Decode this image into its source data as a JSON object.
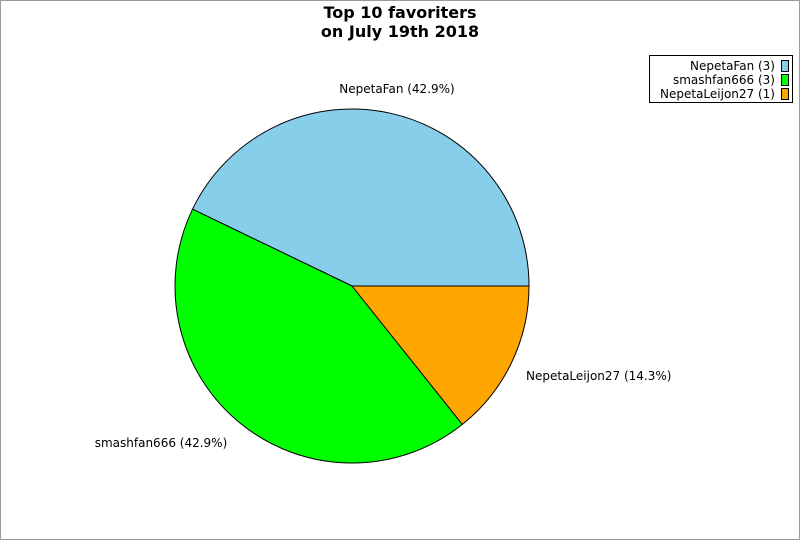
{
  "chart_data": {
    "type": "pie",
    "title": "Top 10 favoriters\non July 19th 2018",
    "title_lines": [
      "Top 10 favoriters",
      "on July 19th 2018"
    ],
    "legend_position": "top-right",
    "slices": [
      {
        "label": "NepetaFan",
        "value": 3,
        "percent": "42.9%",
        "legend": "NepetaFan (3)",
        "slice_label": "NepetaFan (42.9%)",
        "color": "#87ceeb"
      },
      {
        "label": "smashfan666",
        "value": 3,
        "percent": "42.9%",
        "legend": "smashfan666 (3)",
        "slice_label": "smashfan666 (42.9%)",
        "color": "#00ff00"
      },
      {
        "label": "NepetaLeijon27",
        "value": 1,
        "percent": "14.3%",
        "legend": "NepetaLeijon27 (1)",
        "slice_label": "NepetaLeijon27 (14.3%)",
        "color": "#ffa500"
      }
    ]
  }
}
